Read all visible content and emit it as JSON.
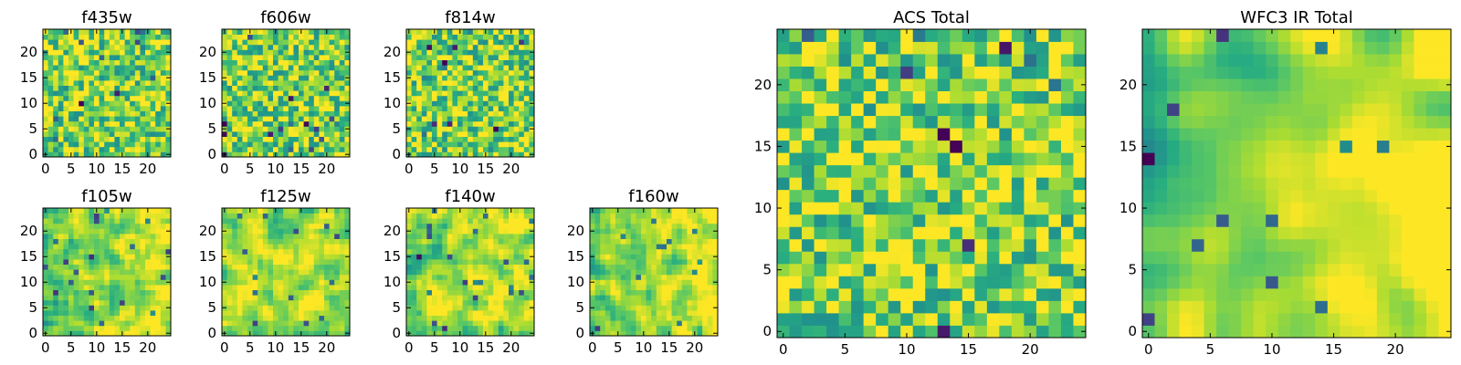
{
  "chart_data": [
    {
      "type": "heatmap",
      "title": "f435w",
      "grid_size": 25,
      "xlim": [
        -0.5,
        24.5
      ],
      "ylim": [
        -0.5,
        24.5
      ],
      "xticks": [
        0,
        5,
        10,
        15,
        20
      ],
      "yticks": [
        0,
        5,
        10,
        15,
        20
      ],
      "colormap": "viridis",
      "texture": "pixel-noise",
      "seed": 11,
      "bias_x": 0.0,
      "bias_y": 0.0
    },
    {
      "type": "heatmap",
      "title": "f606w",
      "grid_size": 25,
      "xlim": [
        -0.5,
        24.5
      ],
      "ylim": [
        -0.5,
        24.5
      ],
      "xticks": [
        0,
        5,
        10,
        15,
        20
      ],
      "yticks": [
        0,
        5,
        10,
        15,
        20
      ],
      "colormap": "viridis",
      "texture": "pixel-noise",
      "seed": 23,
      "bias_x": 0.0,
      "bias_y": 0.0
    },
    {
      "type": "heatmap",
      "title": "f814w",
      "grid_size": 25,
      "xlim": [
        -0.5,
        24.5
      ],
      "ylim": [
        -0.5,
        24.5
      ],
      "xticks": [
        0,
        5,
        10,
        15,
        20
      ],
      "yticks": [
        0,
        5,
        10,
        15,
        20
      ],
      "colormap": "viridis",
      "texture": "pixel-noise",
      "seed": 37,
      "bias_x": 0.0,
      "bias_y": 0.0
    },
    {
      "type": "heatmap",
      "title": "f105w",
      "grid_size": 25,
      "xlim": [
        -0.5,
        24.5
      ],
      "ylim": [
        -0.5,
        24.5
      ],
      "xticks": [
        0,
        5,
        10,
        15,
        20
      ],
      "yticks": [
        0,
        5,
        10,
        15,
        20
      ],
      "colormap": "viridis",
      "texture": "smooth",
      "seed": 41,
      "bias_x": 0.15,
      "bias_y": 0.0
    },
    {
      "type": "heatmap",
      "title": "f125w",
      "grid_size": 25,
      "xlim": [
        -0.5,
        24.5
      ],
      "ylim": [
        -0.5,
        24.5
      ],
      "xticks": [
        0,
        5,
        10,
        15,
        20
      ],
      "yticks": [
        0,
        5,
        10,
        15,
        20
      ],
      "colormap": "viridis",
      "texture": "smooth",
      "seed": 53,
      "bias_x": 0.1,
      "bias_y": 0.0
    },
    {
      "type": "heatmap",
      "title": "f140w",
      "grid_size": 25,
      "xlim": [
        -0.5,
        24.5
      ],
      "ylim": [
        -0.5,
        24.5
      ],
      "xticks": [
        0,
        5,
        10,
        15,
        20
      ],
      "yticks": [
        0,
        5,
        10,
        15,
        20
      ],
      "colormap": "viridis",
      "texture": "smooth",
      "seed": 67,
      "bias_x": 0.1,
      "bias_y": 0.0
    },
    {
      "type": "heatmap",
      "title": "f160w",
      "grid_size": 25,
      "xlim": [
        -0.5,
        24.5
      ],
      "ylim": [
        -0.5,
        24.5
      ],
      "xticks": [
        0,
        5,
        10,
        15,
        20
      ],
      "yticks": [
        0,
        5,
        10,
        15,
        20
      ],
      "colormap": "viridis",
      "texture": "smooth",
      "seed": 79,
      "bias_x": 0.15,
      "bias_y": -0.05
    },
    {
      "type": "heatmap",
      "title": "ACS Total",
      "grid_size": 25,
      "xlim": [
        -0.5,
        24.5
      ],
      "ylim": [
        -0.5,
        24.5
      ],
      "xticks": [
        0,
        5,
        10,
        15,
        20
      ],
      "yticks": [
        0,
        5,
        10,
        15,
        20
      ],
      "colormap": "viridis",
      "texture": "pixel-noise",
      "seed": 97,
      "bias_x": 0.0,
      "bias_y": 0.0
    },
    {
      "type": "heatmap",
      "title": "WFC3 IR Total",
      "grid_size": 25,
      "xlim": [
        -0.5,
        24.5
      ],
      "ylim": [
        -0.5,
        24.5
      ],
      "xticks": [
        0,
        5,
        10,
        15,
        20
      ],
      "yticks": [
        0,
        5,
        10,
        15,
        20
      ],
      "colormap": "viridis",
      "texture": "very-smooth",
      "seed": 113,
      "bias_x": 0.3,
      "bias_y": -0.1
    }
  ]
}
